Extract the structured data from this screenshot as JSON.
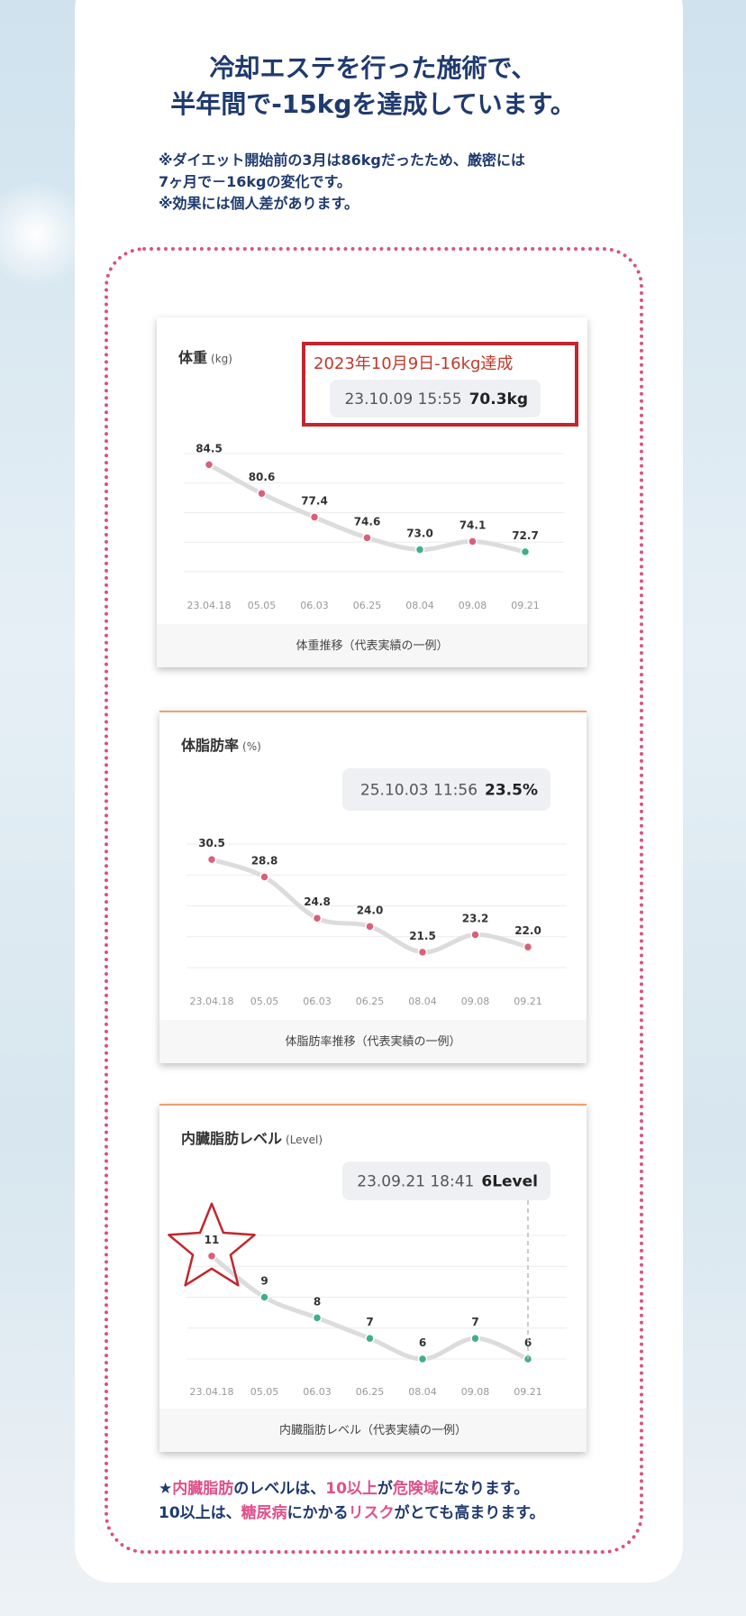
{
  "header": {
    "title_lines": [
      "冷却エステを行った施術で、",
      "半年間で-15kgを達成しています。"
    ],
    "notes": [
      "※ダイエット開始前の3月は86kgだったため、厳密には",
      "7ヶ月で－16kgの変化です。",
      "※効果には個人差があります。"
    ]
  },
  "chart_data": [
    {
      "type": "line",
      "title": "体重",
      "unit": "(kg)",
      "highlight": "2023年10月9日-16kg達成",
      "tooltip_time": "23.10.09 15:55",
      "tooltip_value": "70.3kg",
      "categories": [
        "23.04.18",
        "05.05",
        "06.03",
        "06.25",
        "08.04",
        "09.08",
        "09.21"
      ],
      "values": [
        84.5,
        80.6,
        77.4,
        74.6,
        73.0,
        74.1,
        72.7
      ],
      "value_labels": [
        "84.5",
        "80.6",
        "77.4",
        "74.6",
        "73.0",
        "74.1",
        "72.7"
      ],
      "point_colors": [
        "#d9607a",
        "#d9607a",
        "#d9607a",
        "#d9607a",
        "#3fae8f",
        "#d9607a",
        "#3fae8f"
      ],
      "line_color": "#dcdcdc",
      "ylim": [
        70,
        86
      ],
      "grid": true,
      "caption": "体重推移（代表実績の一例）"
    },
    {
      "type": "line",
      "title": "体脂肪率",
      "unit": "(%)",
      "tooltip_time": "25.10.03 11:56",
      "tooltip_value": "23.5%",
      "categories": [
        "23.04.18",
        "05.05",
        "06.03",
        "06.25",
        "08.04",
        "09.08",
        "09.21"
      ],
      "values": [
        30.5,
        28.8,
        24.8,
        24.0,
        21.5,
        23.2,
        22.0
      ],
      "value_labels": [
        "30.5",
        "28.8",
        "24.8",
        "24.0",
        "21.5",
        "23.2",
        "22.0"
      ],
      "point_colors": [
        "#d9607a",
        "#d9607a",
        "#d9607a",
        "#d9607a",
        "#d9607a",
        "#d9607a",
        "#d9607a"
      ],
      "line_color": "#dcdcdc",
      "ylim": [
        20,
        32
      ],
      "grid": true,
      "caption": "体脂肪率推移（代表実績の一例）"
    },
    {
      "type": "line",
      "title": "内臓脂肪レベル",
      "unit": "(Level)",
      "tooltip_time": "23.09.21 18:41",
      "tooltip_value": "6Level",
      "categories": [
        "23.04.18",
        "05.05",
        "06.03",
        "06.25",
        "08.04",
        "09.08",
        "09.21"
      ],
      "values": [
        11,
        9,
        8,
        7,
        6,
        7,
        6
      ],
      "point_colors": [
        "#d9607a",
        "#3fae8f",
        "#3fae8f",
        "#3fae8f",
        "#3fae8f",
        "#3fae8f",
        "#3fae8f"
      ],
      "line_color": "#dcdcdc",
      "ylim": [
        6,
        12
      ],
      "grid": true,
      "caption": "内臓脂肪レベル（代表実績の一例）"
    }
  ],
  "footer": {
    "lines": [
      [
        "★",
        "内臓脂肪",
        "のレベルは、",
        "10以上",
        "が",
        "危険域",
        "になります。"
      ],
      [
        "10以上は、",
        "糖尿病",
        "にかかる",
        "リスク",
        "がとても高まります。"
      ]
    ]
  }
}
